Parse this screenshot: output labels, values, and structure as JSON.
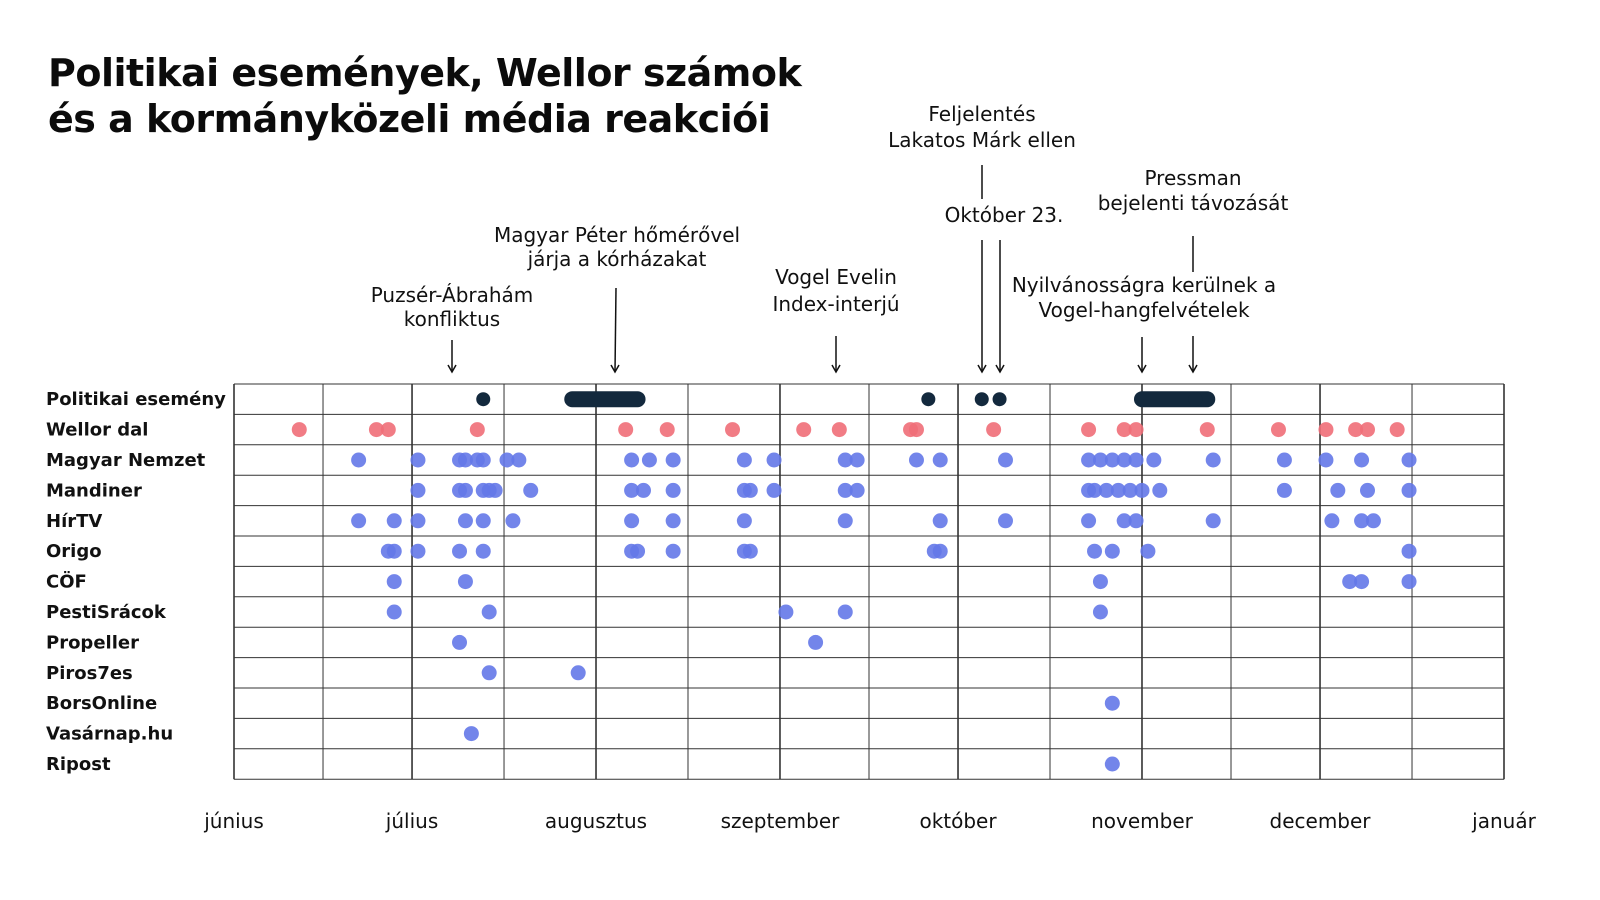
{
  "title": {
    "line1": "Politikai események, Wellor számok",
    "line2": "és a kormányközeli média reakciói"
  },
  "chart_data": {
    "type": "scatter",
    "x_unit": "date",
    "xlim": [
      "2024-06-01",
      "2025-01-01"
    ],
    "months": [
      "június",
      "július",
      "augusztus",
      "szeptember",
      "október",
      "november",
      "december",
      "január"
    ],
    "month_starts": [
      "2024-06-01",
      "2024-07-01",
      "2024-08-01",
      "2024-09-01",
      "2024-10-01",
      "2024-11-01",
      "2024-12-01",
      "2025-01-01"
    ],
    "rows": [
      "Politikai esemény",
      "Wellor dal",
      "Magyar Nemzet",
      "Mandiner",
      "HírTV",
      "Origo",
      "CÖF",
      "PestiSrácok",
      "Propeller",
      "Piros7es",
      "BorsOnline",
      "Vasárnap.hu",
      "Ripost"
    ],
    "colors": {
      "political": "#13293d",
      "wellor": "#f06e78",
      "media": "#6478e8",
      "grid": "#333333"
    },
    "political_events": [
      {
        "label": [
          "Puzsér-Ábrahám",
          "konfliktus"
        ],
        "start": "2024-07-13",
        "end": "2024-07-13"
      },
      {
        "label": [
          "Magyar Péter hőmérővel",
          "járja a kórházakat"
        ],
        "start": "2024-07-28",
        "end": "2024-08-08"
      },
      {
        "label": [
          "Vogel Evelin",
          "Index-interjú"
        ],
        "start": "2024-09-26",
        "end": "2024-09-26"
      },
      {
        "label": [
          "Feljelentés",
          "Lakatos Márk ellen"
        ],
        "start": "2024-10-05",
        "end": "2024-10-05"
      },
      {
        "label": [
          "Október 23."
        ],
        "start": "2024-10-08",
        "end": "2024-10-08"
      },
      {
        "label": [
          "Nyilvánosságra kerülnek a",
          "Vogel-hangfelvételek"
        ],
        "start": "2024-11-01",
        "end": "2024-11-12"
      },
      {
        "label": [
          "Pressman",
          "bejelenti távozását"
        ],
        "start": "2024-11-10",
        "end": "2024-11-10"
      }
    ],
    "series": [
      {
        "name": "Wellor dal",
        "dates": [
          "2024-06-12",
          "2024-06-25",
          "2024-06-27",
          "2024-07-12",
          "2024-08-06",
          "2024-08-13",
          "2024-08-24",
          "2024-09-05",
          "2024-09-11",
          "2024-09-23",
          "2024-09-24",
          "2024-10-07",
          "2024-10-23",
          "2024-10-29",
          "2024-10-31",
          "2024-11-12",
          "2024-11-24",
          "2024-12-02",
          "2024-12-07",
          "2024-12-09",
          "2024-12-14"
        ]
      },
      {
        "name": "Magyar Nemzet",
        "dates": [
          "2024-06-22",
          "2024-07-02",
          "2024-07-09",
          "2024-07-10",
          "2024-07-12",
          "2024-07-13",
          "2024-07-17",
          "2024-07-19",
          "2024-08-07",
          "2024-08-10",
          "2024-08-14",
          "2024-08-26",
          "2024-08-31",
          "2024-09-12",
          "2024-09-14",
          "2024-09-24",
          "2024-09-28",
          "2024-10-09",
          "2024-10-23",
          "2024-10-25",
          "2024-10-27",
          "2024-10-29",
          "2024-10-31",
          "2024-11-03",
          "2024-11-13",
          "2024-11-25",
          "2024-12-02",
          "2024-12-08",
          "2024-12-16"
        ]
      },
      {
        "name": "Mandiner",
        "dates": [
          "2024-07-02",
          "2024-07-09",
          "2024-07-10",
          "2024-07-13",
          "2024-07-14",
          "2024-07-15",
          "2024-07-21",
          "2024-08-07",
          "2024-08-09",
          "2024-08-14",
          "2024-08-26",
          "2024-08-27",
          "2024-08-31",
          "2024-09-12",
          "2024-09-14",
          "2024-10-23",
          "2024-10-24",
          "2024-10-26",
          "2024-10-28",
          "2024-10-30",
          "2024-11-01",
          "2024-11-04",
          "2024-11-25",
          "2024-12-04",
          "2024-12-09",
          "2024-12-16"
        ]
      },
      {
        "name": "HírTV",
        "dates": [
          "2024-06-22",
          "2024-06-28",
          "2024-07-02",
          "2024-07-10",
          "2024-07-13",
          "2024-07-18",
          "2024-08-07",
          "2024-08-14",
          "2024-08-26",
          "2024-09-12",
          "2024-09-28",
          "2024-10-09",
          "2024-10-23",
          "2024-10-29",
          "2024-10-31",
          "2024-11-13",
          "2024-12-03",
          "2024-12-08",
          "2024-12-10"
        ]
      },
      {
        "name": "Origo",
        "dates": [
          "2024-06-27",
          "2024-06-28",
          "2024-07-02",
          "2024-07-09",
          "2024-07-13",
          "2024-08-07",
          "2024-08-08",
          "2024-08-14",
          "2024-08-26",
          "2024-08-27",
          "2024-09-27",
          "2024-09-28",
          "2024-10-24",
          "2024-10-27",
          "2024-11-02",
          "2024-12-16"
        ]
      },
      {
        "name": "CÖF",
        "dates": [
          "2024-06-28",
          "2024-07-10",
          "2024-10-25",
          "2024-12-06",
          "2024-12-08",
          "2024-12-16"
        ]
      },
      {
        "name": "PestiSrácok",
        "dates": [
          "2024-06-28",
          "2024-07-14",
          "2024-09-02",
          "2024-09-12",
          "2024-10-25"
        ]
      },
      {
        "name": "Propeller",
        "dates": [
          "2024-07-09",
          "2024-09-07"
        ]
      },
      {
        "name": "Piros7es",
        "dates": [
          "2024-07-14",
          "2024-07-29"
        ]
      },
      {
        "name": "BorsOnline",
        "dates": [
          "2024-10-27"
        ]
      },
      {
        "name": "Vasárnap.hu",
        "dates": [
          "2024-07-11"
        ]
      },
      {
        "name": "Ripost",
        "dates": [
          "2024-10-27"
        ]
      }
    ]
  }
}
